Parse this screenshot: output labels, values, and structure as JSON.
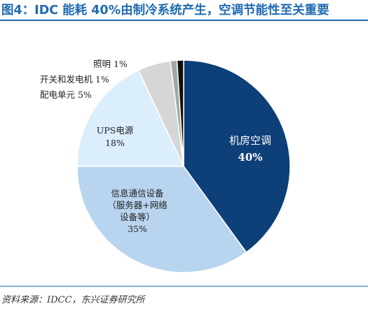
{
  "header": {
    "title": "图4：IDC 能耗 40%由制冷系统产生，空调节能性至关重要"
  },
  "footer": {
    "source": "资料来源：IDCC，东兴证券研究所"
  },
  "chart_data": {
    "type": "pie",
    "title": "",
    "slices": [
      {
        "label_lines": [
          "机房空调",
          "40%"
        ],
        "value": 40,
        "color": "#0d3f78",
        "label_color": "#ffffff"
      },
      {
        "label_lines": [
          "信息通信设备",
          "（服务器+网络",
          "设备等）",
          "35%"
        ],
        "value": 35,
        "color": "#b9d4ee",
        "label_color": "#222222"
      },
      {
        "label_lines": [
          "UPS电源",
          "18%"
        ],
        "value": 18,
        "color": "#daeefb",
        "label_color": "#222222"
      },
      {
        "label_lines": [
          "配电单元 5%"
        ],
        "value": 5,
        "color": "#d6d6d6",
        "label_color": "#222222"
      },
      {
        "label_lines": [
          "开关和发电机 1%"
        ],
        "value": 1,
        "color": "#a6a6a6",
        "label_color": "#222222"
      },
      {
        "label_lines": [
          "照明 1%"
        ],
        "value": 1,
        "color": "#111111",
        "label_color": "#222222"
      }
    ]
  }
}
